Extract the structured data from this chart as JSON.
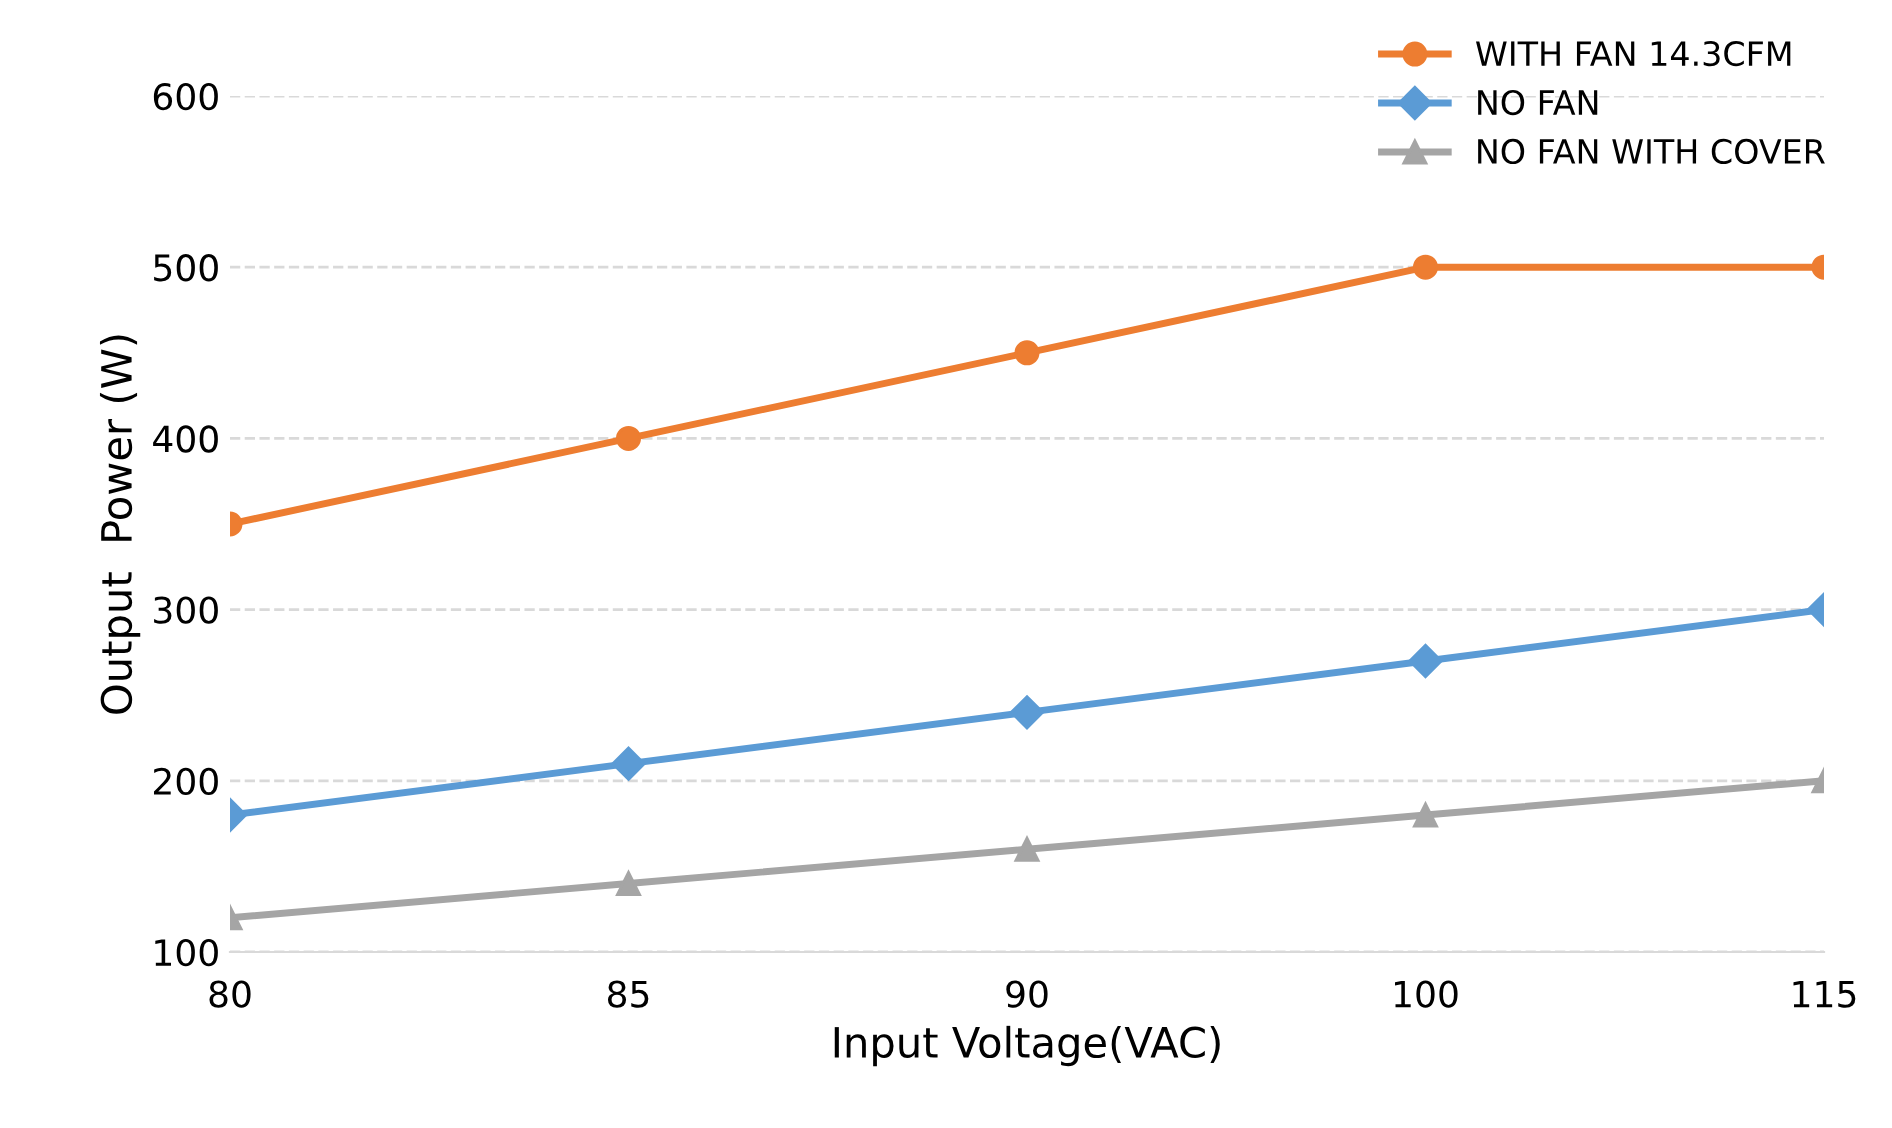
{
  "chart_data": {
    "type": "line",
    "xlabel": "Input Voltage(VAC)",
    "ylabel": "Output  Power (W)",
    "categories": [
      "80",
      "85",
      "90",
      "100",
      "115"
    ],
    "series": [
      {
        "name": "WITH FAN 14.3CFM",
        "color": "#ed7d31",
        "marker": "circle",
        "values": [
          350,
          400,
          450,
          500,
          500
        ]
      },
      {
        "name": "NO FAN",
        "color": "#5b9bd5",
        "marker": "diamond",
        "values": [
          180,
          210,
          240,
          270,
          300
        ]
      },
      {
        "name": "NO FAN WITH COVER",
        "color": "#a5a5a5",
        "marker": "triangle",
        "values": [
          120,
          140,
          160,
          180,
          200
        ]
      }
    ],
    "ylim": [
      100,
      600
    ],
    "yticks": [
      100,
      200,
      300,
      400,
      500,
      600
    ],
    "grid": "y",
    "legend": "top right",
    "line_style": "solid"
  }
}
